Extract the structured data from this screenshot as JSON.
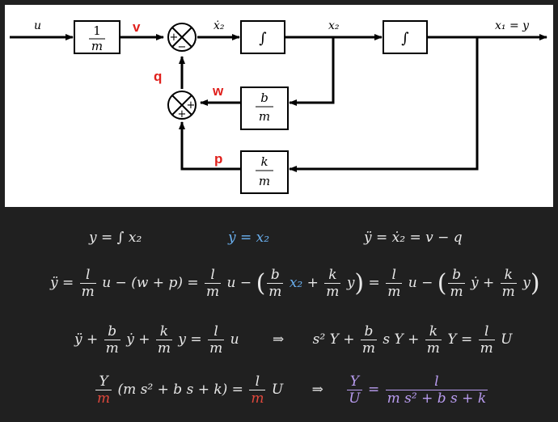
{
  "diagram": {
    "input_label": "u",
    "output_label": "x₁ = y",
    "block_gain": {
      "num": "1",
      "den": "m"
    },
    "block_int1": "∫",
    "block_int2": "∫",
    "block_damping": {
      "num": "b",
      "den": "m"
    },
    "block_spring": {
      "num": "k",
      "den": "m"
    },
    "signal_v": "v",
    "signal_q": "q",
    "signal_w": "w",
    "signal_p": "p",
    "label_x2dot": "ẋ₂",
    "label_x2": "x₂",
    "sum1_plus": "+",
    "sum1_minus": "−",
    "sum2_plus_right": "+",
    "sum2_plus_bottom": "+",
    "colors": {
      "signal_label": "#e0201c",
      "line": "#000000"
    }
  },
  "equations": {
    "row1": {
      "a": "y = ∫ x₂",
      "b": "ẏ = x₂",
      "c": "ÿ = ẋ₂ = v − q"
    },
    "row2": {
      "lhs": "ÿ =",
      "f1_num": "l",
      "f1_den": "m",
      "t1": "u − (w + p) =",
      "f2_num": "l",
      "f2_den": "m",
      "t2": "u −",
      "p1_open": "(",
      "f3_num": "b",
      "f3_den": "m",
      "t3": "x₂",
      "t3b": "+",
      "f4_num": "k",
      "f4_den": "m",
      "t4": "y",
      "p1_close": ")",
      "t5": "=",
      "f5_num": "l",
      "f5_den": "m",
      "t6": "u −",
      "p2_open": "(",
      "f6_num": "b",
      "f6_den": "m",
      "t7": "ẏ +",
      "f7_num": "k",
      "f7_den": "m",
      "t8": "y",
      "p2_close": ")"
    },
    "row3": {
      "t1": "ÿ +",
      "f1_num": "b",
      "f1_den": "m",
      "t2": "ẏ +",
      "f2_num": "k",
      "f2_den": "m",
      "t3": "y =",
      "f3_num": "l",
      "f3_den": "m",
      "t4": "u",
      "arrow": "⇒",
      "t5": "s² Y +",
      "f4_num": "b",
      "f4_den": "m",
      "t6": "s Y +",
      "f5_num": "k",
      "f5_den": "m",
      "t7": "Y =",
      "f6_num": "l",
      "f6_den": "m",
      "t8": "U"
    },
    "row4": {
      "f1_num": "Y",
      "f1_den": "m",
      "t1": "(m s² + b s + k) =",
      "f2_num": "l",
      "f2_den": "m",
      "t2": "U",
      "arrow": "⇒",
      "f3_num": "Y",
      "f3_den": "U",
      "t3": "=",
      "f4_num": "l",
      "f4_den": "m s² + b s + k"
    },
    "colors": {
      "text": "#e8e8e8",
      "blue": "#6ab0f0",
      "red": "#e0483c",
      "violet": "#b99cf0"
    }
  }
}
